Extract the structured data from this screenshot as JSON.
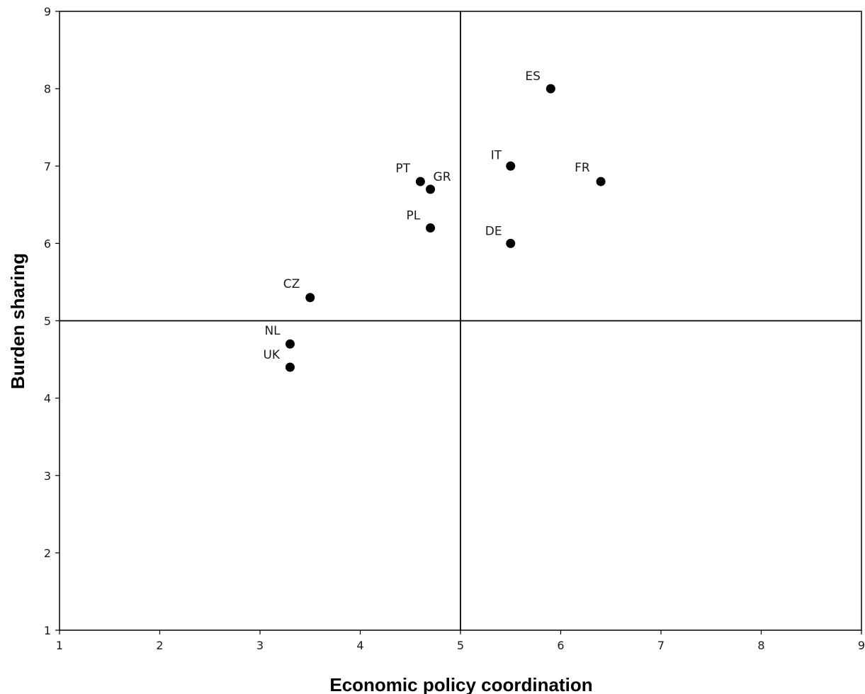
{
  "colors": {
    "background": "#ffffff",
    "axis": "#000000",
    "marker": "#000000",
    "reference_line": "#000000"
  },
  "chart_data": {
    "type": "scatter",
    "title": "",
    "xlabel": "Economic policy coordination",
    "ylabel": "Burden sharing",
    "xlim": [
      1,
      9
    ],
    "ylim": [
      1,
      9
    ],
    "xticks": [
      1,
      2,
      3,
      4,
      5,
      6,
      7,
      8,
      9
    ],
    "yticks": [
      1,
      2,
      3,
      4,
      5,
      6,
      7,
      8,
      9
    ],
    "grid": false,
    "legend": "none",
    "reference_lines": {
      "x": 5,
      "y": 5
    },
    "points": [
      {
        "label": "ES",
        "x": 5.9,
        "y": 8.0
      },
      {
        "label": "IT",
        "x": 5.5,
        "y": 7.0
      },
      {
        "label": "FR",
        "x": 6.4,
        "y": 6.8
      },
      {
        "label": "PT",
        "x": 4.6,
        "y": 6.8
      },
      {
        "label": "GR",
        "x": 4.7,
        "y": 6.7
      },
      {
        "label": "PL",
        "x": 4.7,
        "y": 6.2
      },
      {
        "label": "DE",
        "x": 5.5,
        "y": 6.0
      },
      {
        "label": "CZ",
        "x": 3.5,
        "y": 5.3
      },
      {
        "label": "NL",
        "x": 3.3,
        "y": 4.7
      },
      {
        "label": "UK",
        "x": 3.3,
        "y": 4.4
      }
    ]
  }
}
